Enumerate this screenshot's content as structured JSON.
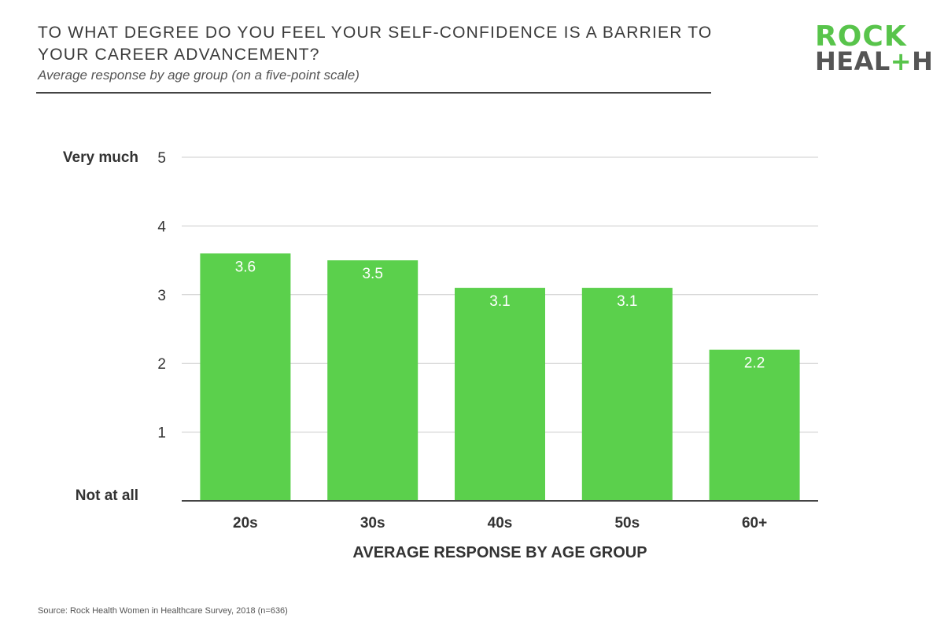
{
  "header": {
    "title": "TO WHAT DEGREE DO YOU FEEL YOUR SELF-CONFIDENCE IS A BARRIER TO YOUR CAREER ADVANCEMENT?",
    "subtitle": "Average response by age group (on a five-point scale)"
  },
  "logo": {
    "line1": "ROCK",
    "line2_a": "HEAL",
    "line2_plus": "+",
    "line2_b": "H"
  },
  "source": "Source: Rock Health Women in Healthcare Survey, 2018 (n=636)",
  "colors": {
    "bar": "#5bd04c",
    "grid": "#cccccc",
    "axis": "#444444",
    "label_on_bar": "#ffffff",
    "brand_green": "#58c44b"
  },
  "chart_data": {
    "type": "bar",
    "categories": [
      "20s",
      "30s",
      "40s",
      "50s",
      "60+"
    ],
    "values": [
      3.6,
      3.5,
      3.1,
      3.1,
      2.2
    ],
    "data_labels": [
      "3.6",
      "3.5",
      "3.1",
      "3.1",
      "2.2"
    ],
    "xlabel": "AVERAGE RESPONSE BY AGE GROUP",
    "ylabel": "",
    "ylim": [
      0,
      5
    ],
    "yticks": [
      1,
      2,
      3,
      4,
      5
    ],
    "y_scale_labels": [
      {
        "value": 5,
        "text": "Very much"
      },
      {
        "value": 0,
        "text": "Not at all"
      }
    ],
    "grid": true,
    "legend": "none"
  }
}
